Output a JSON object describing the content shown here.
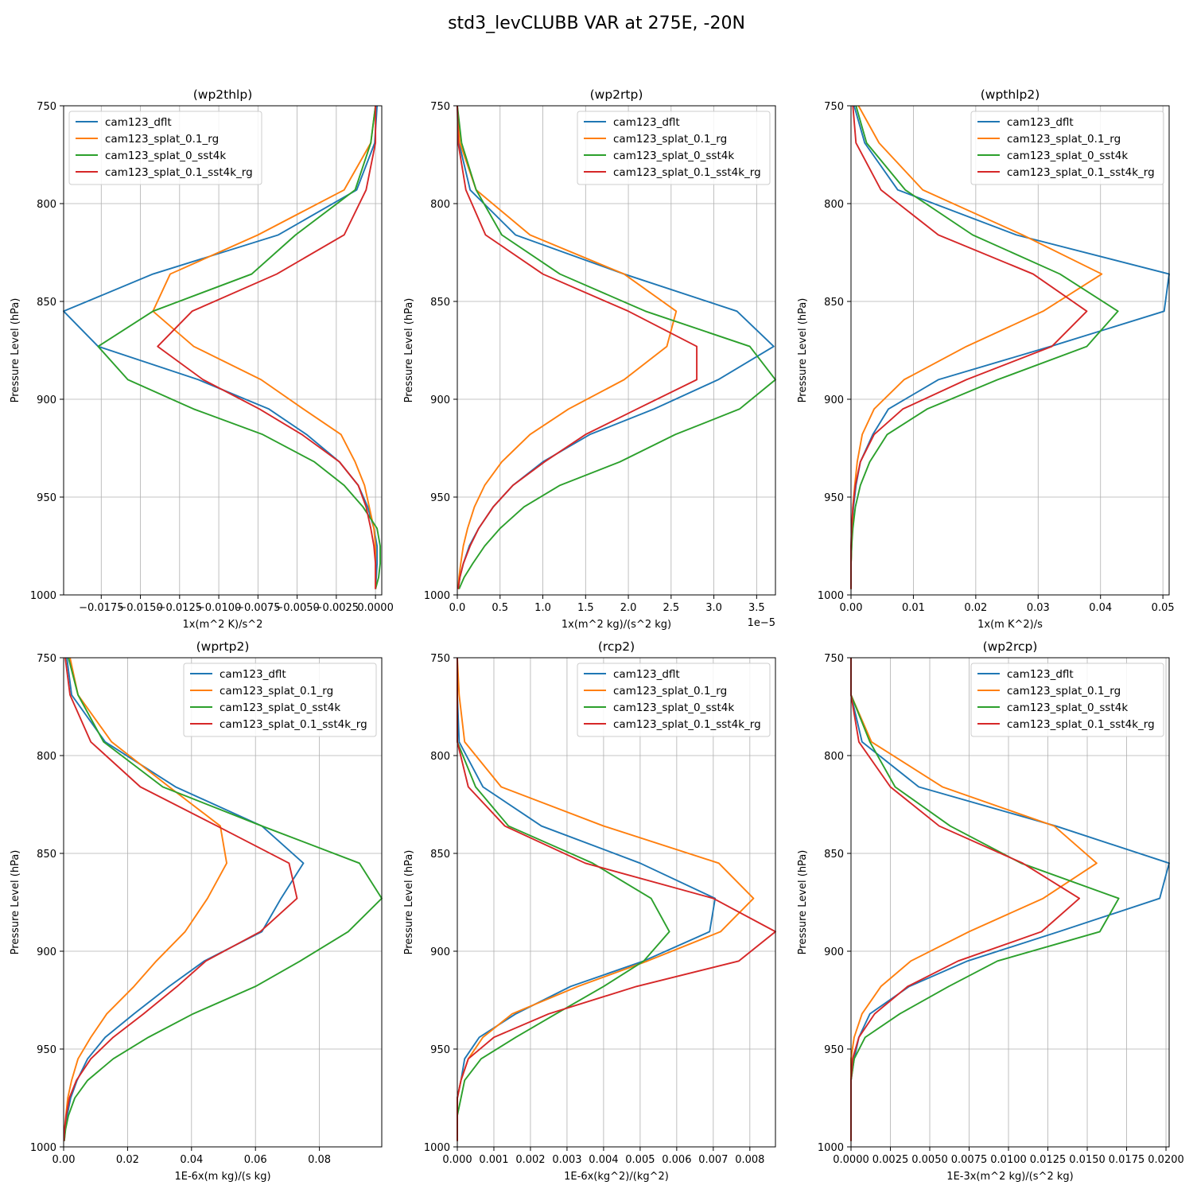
{
  "suptitle": "std3_levCLUBB VAR at 275E, -20N",
  "colors": {
    "cam123_dflt": "#1f77b4",
    "cam123_splat_0.1_rg": "#ff7f0e",
    "cam123_splat_0_sst4k": "#2ca02c",
    "cam123_splat_0.1_sst4k_rg": "#d62728"
  },
  "chart_data": [
    {
      "type": "line",
      "title": "(wp2thlp)",
      "xlabel": "1x(m^2 K)/s^2",
      "ylabel": "Pressure Level (hPa)",
      "xlim": [
        -0.0199,
        0.0004
      ],
      "ylim": [
        1000,
        750
      ],
      "xticks": [
        -0.0175,
        -0.015,
        -0.0125,
        -0.01,
        -0.0075,
        -0.005,
        -0.0025,
        0.0
      ],
      "xtick_labels": [
        "−0.0175",
        "−0.0150",
        "−0.0125",
        "−0.0100",
        "−0.0075",
        "−0.0050",
        "−0.0025",
        "0.0000"
      ],
      "yticks": [
        750,
        800,
        850,
        900,
        950,
        1000
      ],
      "legend": "top-left",
      "offset_label": "",
      "levels": [
        750,
        769,
        793,
        816,
        836,
        855,
        873,
        890,
        905,
        918,
        932,
        944,
        955,
        966,
        975,
        984,
        991,
        997
      ],
      "series": [
        {
          "name": "cam123_dflt",
          "values": [
            0.0001,
            -5e-05,
            -0.0012,
            -0.0062,
            -0.0142,
            -0.0199,
            -0.0177,
            -0.0113,
            -0.0068,
            -0.0044,
            -0.0023,
            -0.0011,
            -0.0005,
            -0.0001,
            0.0001,
            0.0001,
            5e-05,
            0.0
          ]
        },
        {
          "name": "cam123_splat_0.1_rg",
          "values": [
            0.0,
            -0.0003,
            -0.002,
            -0.0075,
            -0.0131,
            -0.0142,
            -0.0116,
            -0.0073,
            -0.0046,
            -0.0022,
            -0.0013,
            -0.0007,
            -0.0004,
            -0.0001,
            0.0,
            0.0,
            0.0,
            0.0
          ]
        },
        {
          "name": "cam123_splat_0_sst4k",
          "values": [
            0.0,
            -0.0003,
            -0.0013,
            -0.0051,
            -0.0079,
            -0.0142,
            -0.0177,
            -0.0158,
            -0.0116,
            -0.0072,
            -0.0039,
            -0.002,
            -0.0008,
            0.0001,
            0.0003,
            0.0003,
            0.0002,
            0.0
          ]
        },
        {
          "name": "cam123_splat_0.1_sst4k_rg",
          "values": [
            0.0,
            0.0,
            -0.0006,
            -0.002,
            -0.0063,
            -0.0117,
            -0.0139,
            -0.011,
            -0.0074,
            -0.0047,
            -0.0023,
            -0.0011,
            -0.0006,
            -0.0003,
            -0.0001,
            0.0,
            0.0,
            0.0
          ]
        }
      ]
    },
    {
      "type": "line",
      "title": "(wp2rtp)",
      "xlabel": "1x(m^2 kg)/(s^2 kg)",
      "ylabel": "Pressure Level (hPa)",
      "xlim": [
        0,
        3.72
      ],
      "ylim": [
        1000,
        750
      ],
      "xticks": [
        0,
        0.5,
        1.0,
        1.5,
        2.0,
        2.5,
        3.0,
        3.5
      ],
      "xtick_labels": [
        "0.0",
        "0.5",
        "1.0",
        "1.5",
        "2.0",
        "2.5",
        "3.0",
        "3.5"
      ],
      "yticks": [
        750,
        800,
        850,
        900,
        950,
        1000
      ],
      "legend": "top-right",
      "offset_label": "1e−5",
      "levels": [
        750,
        769,
        793,
        816,
        836,
        855,
        873,
        890,
        905,
        918,
        932,
        944,
        955,
        966,
        975,
        984,
        991,
        997
      ],
      "series": [
        {
          "name": "cam123_dflt",
          "values": [
            0.0,
            0.02,
            0.15,
            0.68,
            1.95,
            3.27,
            3.7,
            3.05,
            2.3,
            1.55,
            1.0,
            0.65,
            0.42,
            0.25,
            0.14,
            0.07,
            0.03,
            0.01
          ]
        },
        {
          "name": "cam123_splat_0.1_rg",
          "values": [
            0.0,
            0.03,
            0.22,
            0.85,
            1.95,
            2.56,
            2.45,
            1.95,
            1.3,
            0.85,
            0.52,
            0.32,
            0.2,
            0.12,
            0.07,
            0.04,
            0.02,
            0.01
          ]
        },
        {
          "name": "cam123_splat_0_sst4k",
          "values": [
            0.0,
            0.05,
            0.22,
            0.52,
            1.2,
            2.2,
            3.42,
            3.72,
            3.3,
            2.55,
            1.9,
            1.2,
            0.78,
            0.5,
            0.32,
            0.18,
            0.08,
            0.02
          ]
        },
        {
          "name": "cam123_splat_0.1_sst4k_rg",
          "values": [
            0.0,
            0.01,
            0.1,
            0.33,
            1.0,
            2.0,
            2.8,
            2.8,
            2.1,
            1.5,
            1.02,
            0.65,
            0.42,
            0.25,
            0.15,
            0.07,
            0.03,
            0.01
          ]
        }
      ]
    },
    {
      "type": "line",
      "title": "(wpthlp2)",
      "xlabel": "1x(m K^2)/s",
      "ylabel": "Pressure Level (hPa)",
      "xlim": [
        0,
        0.051
      ],
      "ylim": [
        1000,
        750
      ],
      "xticks": [
        0,
        0.01,
        0.02,
        0.03,
        0.04,
        0.05
      ],
      "xtick_labels": [
        "0.00",
        "0.01",
        "0.02",
        "0.03",
        "0.04",
        "0.05"
      ],
      "yticks": [
        750,
        800,
        850,
        900,
        950,
        1000
      ],
      "legend": "top-right",
      "offset_label": "",
      "levels": [
        750,
        769,
        793,
        816,
        836,
        855,
        873,
        890,
        905,
        918,
        932,
        944,
        955,
        966,
        975,
        984,
        991,
        997
      ],
      "series": [
        {
          "name": "cam123_dflt",
          "values": [
            0.0005,
            0.0022,
            0.0075,
            0.0265,
            0.051,
            0.0502,
            0.032,
            0.014,
            0.006,
            0.0035,
            0.0015,
            0.0008,
            0.0004,
            0.0002,
            0.0001,
            0.0,
            0.0,
            0.0
          ]
        },
        {
          "name": "cam123_splat_0.1_rg",
          "values": [
            0.0012,
            0.0045,
            0.0115,
            0.0275,
            0.0402,
            0.0308,
            0.0185,
            0.0085,
            0.0037,
            0.0018,
            0.001,
            0.0006,
            0.0003,
            0.0002,
            0.0001,
            0.0,
            0.0,
            0.0
          ]
        },
        {
          "name": "cam123_splat_0_sst4k",
          "values": [
            0.0008,
            0.0025,
            0.0087,
            0.0195,
            0.0335,
            0.0428,
            0.0378,
            0.0235,
            0.0122,
            0.0058,
            0.003,
            0.0015,
            0.0007,
            0.0003,
            0.0001,
            0.0,
            0.0,
            0.0
          ]
        },
        {
          "name": "cam123_splat_0.1_sst4k_rg",
          "values": [
            0.0003,
            0.0008,
            0.0048,
            0.014,
            0.0292,
            0.0378,
            0.0322,
            0.0185,
            0.0083,
            0.0037,
            0.0015,
            0.0007,
            0.0003,
            0.0001,
            0.0,
            0.0,
            0.0,
            0.0
          ]
        }
      ]
    },
    {
      "type": "line",
      "title": "(wprtp2)",
      "xlabel": "1E-6x(m kg)/(s kg)",
      "ylabel": "Pressure Level (hPa)",
      "xlim": [
        0,
        0.0995
      ],
      "ylim": [
        1000,
        750
      ],
      "xticks": [
        0,
        0.02,
        0.04,
        0.06,
        0.08
      ],
      "xtick_labels": [
        "0.00",
        "0.02",
        "0.04",
        "0.06",
        "0.08"
      ],
      "yticks": [
        750,
        800,
        850,
        900,
        950,
        1000
      ],
      "legend": "top-right",
      "offset_label": "",
      "levels": [
        750,
        769,
        793,
        816,
        836,
        855,
        873,
        890,
        905,
        918,
        932,
        944,
        955,
        966,
        975,
        984,
        991,
        997
      ],
      "series": [
        {
          "name": "cam123_dflt",
          "values": [
            0.001,
            0.0025,
            0.013,
            0.035,
            0.062,
            0.075,
            0.068,
            0.062,
            0.044,
            0.033,
            0.022,
            0.013,
            0.0075,
            0.0042,
            0.0022,
            0.0011,
            0.0005,
            0.0002
          ]
        },
        {
          "name": "cam123_splat_0.1_rg",
          "values": [
            0.002,
            0.0045,
            0.015,
            0.033,
            0.049,
            0.051,
            0.045,
            0.038,
            0.029,
            0.022,
            0.0135,
            0.0085,
            0.0045,
            0.0025,
            0.0013,
            0.0007,
            0.0003,
            0.0001
          ]
        },
        {
          "name": "cam123_splat_0_sst4k",
          "values": [
            0.0015,
            0.0045,
            0.0125,
            0.031,
            0.062,
            0.0925,
            0.0995,
            0.089,
            0.074,
            0.06,
            0.0405,
            0.0265,
            0.0155,
            0.0075,
            0.0035,
            0.0015,
            0.0006,
            0.0002
          ]
        },
        {
          "name": "cam123_splat_0.1_sst4k_rg",
          "values": [
            0.0005,
            0.002,
            0.0085,
            0.024,
            0.048,
            0.0705,
            0.073,
            0.0615,
            0.0445,
            0.0355,
            0.025,
            0.0155,
            0.0085,
            0.004,
            0.0018,
            0.0008,
            0.0003,
            0.0001
          ]
        }
      ]
    },
    {
      "type": "line",
      "title": "(rcp2)",
      "xlabel": "1E-6x(kg^2)/(kg^2)",
      "ylabel": "Pressure Level (hPa)",
      "xlim": [
        0,
        0.0087
      ],
      "ylim": [
        1000,
        750
      ],
      "xticks": [
        0,
        0.001,
        0.002,
        0.003,
        0.004,
        0.005,
        0.006,
        0.007,
        0.008
      ],
      "xtick_labels": [
        "0.000",
        "0.001",
        "0.002",
        "0.003",
        "0.004",
        "0.005",
        "0.006",
        "0.007",
        "0.008"
      ],
      "yticks": [
        750,
        800,
        850,
        900,
        950,
        1000
      ],
      "legend": "top-right",
      "offset_label": "",
      "levels": [
        750,
        769,
        793,
        816,
        836,
        855,
        873,
        890,
        905,
        918,
        932,
        944,
        955,
        966,
        975,
        984,
        991,
        997
      ],
      "series": [
        {
          "name": "cam123_dflt",
          "values": [
            0.0,
            0.0,
            5e-05,
            0.0007,
            0.0023,
            0.005,
            0.00705,
            0.0069,
            0.0051,
            0.0031,
            0.0016,
            0.0006,
            0.0002,
            0.0001,
            0.0,
            0.0,
            0.0,
            0.0
          ]
        },
        {
          "name": "cam123_splat_0.1_rg",
          "values": [
            0.0,
            5e-05,
            0.0002,
            0.0012,
            0.004,
            0.00715,
            0.0081,
            0.0072,
            0.0052,
            0.0033,
            0.0015,
            0.0007,
            0.0003,
            0.0001,
            0.0,
            0.0,
            0.0,
            0.0
          ]
        },
        {
          "name": "cam123_splat_0_sst4k",
          "values": [
            0.0,
            0.0,
            0.0,
            0.0005,
            0.0014,
            0.0037,
            0.0053,
            0.0058,
            0.0051,
            0.004,
            0.0027,
            0.0016,
            0.00065,
            0.0002,
            0.0001,
            0.0,
            0.0,
            0.0
          ]
        },
        {
          "name": "cam123_splat_0.1_sst4k_rg",
          "values": [
            0.0,
            0.0,
            0.0,
            0.0003,
            0.0013,
            0.0035,
            0.007,
            0.0087,
            0.0077,
            0.0049,
            0.0025,
            0.001,
            0.0003,
            0.0001,
            0.0,
            0.0,
            0.0,
            0.0
          ]
        }
      ]
    },
    {
      "type": "line",
      "title": "(wp2rcp)",
      "xlabel": "1E-3x(m^2 kg)/(s^2 kg)",
      "ylabel": "Pressure Level (hPa)",
      "xlim": [
        0,
        0.0202
      ],
      "ylim": [
        1000,
        750
      ],
      "xticks": [
        0,
        0.0025,
        0.005,
        0.0075,
        0.01,
        0.0125,
        0.015,
        0.0175,
        0.02
      ],
      "xtick_labels": [
        "0.0000",
        "0.0025",
        "0.0050",
        "0.0075",
        "0.0100",
        "0.0125",
        "0.0150",
        "0.0175",
        "0.0200"
      ],
      "yticks": [
        750,
        800,
        850,
        900,
        950,
        1000
      ],
      "legend": "top-right",
      "offset_label": "",
      "levels": [
        750,
        769,
        793,
        816,
        836,
        855,
        873,
        890,
        905,
        918,
        932,
        944,
        955,
        966,
        975,
        984,
        991,
        997
      ],
      "series": [
        {
          "name": "cam123_dflt",
          "values": [
            0.0,
            0.0,
            0.0007,
            0.0043,
            0.013,
            0.0202,
            0.0196,
            0.0132,
            0.0074,
            0.0037,
            0.0012,
            0.0005,
            0.0002,
            0.0,
            0.0,
            0.0,
            0.0,
            0.0
          ]
        },
        {
          "name": "cam123_splat_0.1_rg",
          "values": [
            0.0,
            0.0,
            0.0013,
            0.0058,
            0.0129,
            0.0156,
            0.0122,
            0.0075,
            0.0038,
            0.0019,
            0.0007,
            0.0002,
            0.0,
            0.0,
            0.0,
            0.0,
            0.0,
            0.0
          ]
        },
        {
          "name": "cam123_splat_0_sst4k",
          "values": [
            0.0,
            0.0,
            0.0012,
            0.0028,
            0.0063,
            0.0108,
            0.017,
            0.0158,
            0.0093,
            0.0062,
            0.0031,
            0.0009,
            0.0002,
            0.0,
            0.0,
            0.0,
            0.0,
            0.0
          ]
        },
        {
          "name": "cam123_splat_0.1_sst4k_rg",
          "values": [
            0.0,
            0.0,
            0.0005,
            0.0025,
            0.0056,
            0.0109,
            0.0145,
            0.0121,
            0.0068,
            0.0036,
            0.0015,
            0.0005,
            0.0001,
            0.0,
            0.0,
            0.0,
            0.0,
            0.0
          ]
        }
      ]
    }
  ]
}
